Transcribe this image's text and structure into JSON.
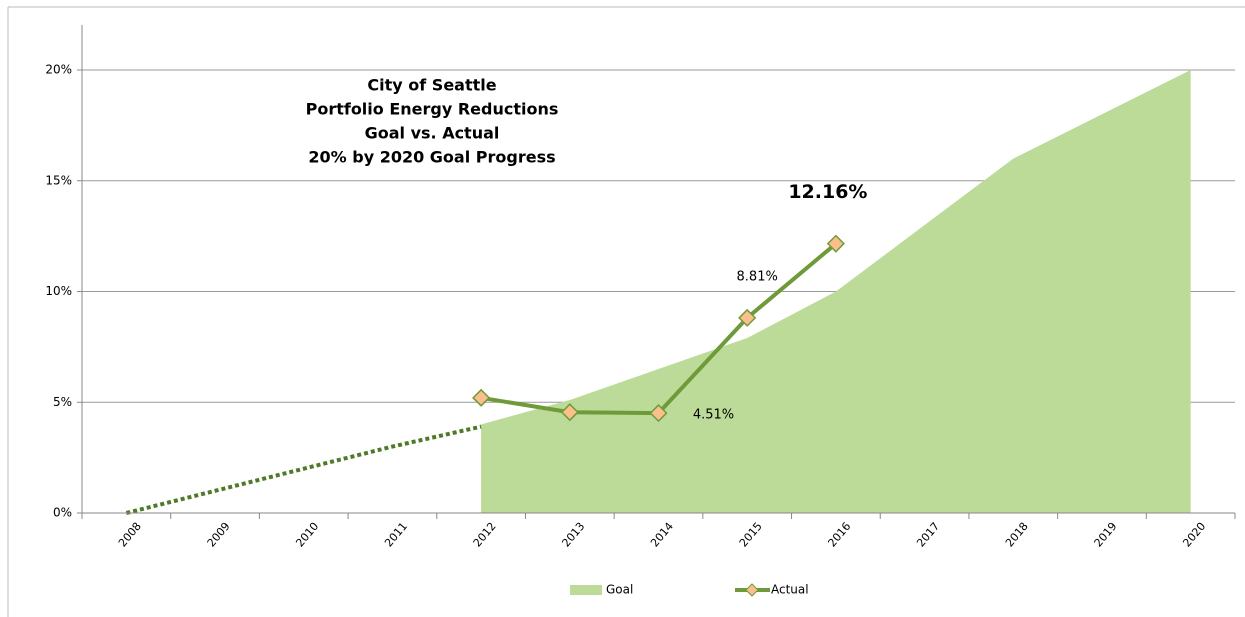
{
  "chart_data": {
    "type": "area-line",
    "title": [
      "City of Seattle",
      "Portfolio Energy Reductions",
      "Goal vs. Actual",
      "20% by 2020 Goal Progress"
    ],
    "categories": [
      "2008",
      "2009",
      "2010",
      "2011",
      "2012",
      "2013",
      "2014",
      "2015",
      "2016",
      "2017",
      "2018",
      "2019",
      "2020"
    ],
    "series": [
      {
        "name": "Goal",
        "type": "area",
        "color": "#bcdb99",
        "values": [
          null,
          null,
          null,
          null,
          4,
          5.1,
          6.5,
          7.9,
          10,
          13,
          16,
          18,
          20
        ]
      },
      {
        "type": "line",
        "dashed": true,
        "color": "#4f7a28",
        "values": [
          0,
          1,
          2,
          3,
          3.9,
          null,
          null,
          null,
          null,
          null,
          null,
          null,
          null
        ]
      },
      {
        "name": "Actual",
        "type": "line",
        "color": "#6f9a3a",
        "marker_color": "#fbbf8c",
        "values": [
          null,
          null,
          null,
          null,
          5.2,
          4.55,
          4.51,
          8.81,
          12.16,
          null,
          null,
          null,
          null
        ],
        "value_labels": [
          null,
          null,
          null,
          null,
          null,
          null,
          "4.51%",
          "8.81%",
          "12.16%",
          null,
          null,
          null,
          null
        ]
      }
    ],
    "ylim": [
      0,
      20
    ],
    "yticks": [
      {
        "value": 0,
        "label": "0%"
      },
      {
        "value": 5,
        "label": "5%"
      },
      {
        "value": 10,
        "label": "10%"
      },
      {
        "value": 15,
        "label": "15%"
      },
      {
        "value": 20,
        "label": "20%"
      }
    ],
    "grid": true,
    "legend": "bottom"
  }
}
